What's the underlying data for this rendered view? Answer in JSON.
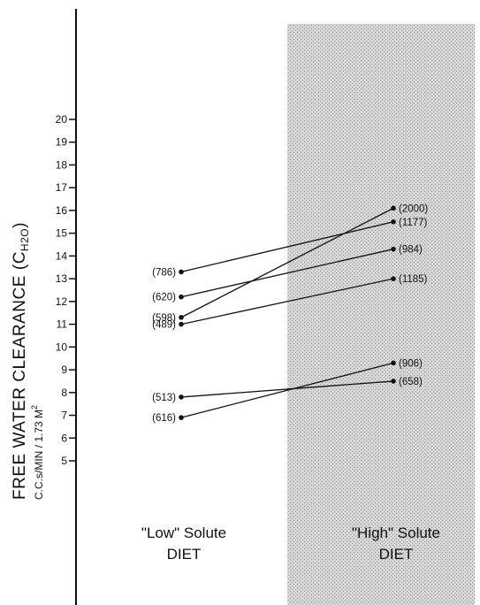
{
  "chart_data": {
    "type": "line",
    "categories": [
      "\"Low\" Solute DIET",
      "\"High\" Solute DIET"
    ],
    "category_labels": [
      {
        "line1": "\"Low\" Solute",
        "line2": "DIET"
      },
      {
        "line1": "\"High\" Solute",
        "line2": "DIET"
      }
    ],
    "ylabel": {
      "main": "FREE WATER CLEARANCE",
      "symbol": "(C",
      "subscript": "H2O",
      "symbol_close": ")",
      "units": "C.C.s/MIN / 1.73 M",
      "units_sup": "2"
    },
    "ylim": [
      3.5,
      20.5
    ],
    "yticks": [
      5,
      6,
      7,
      8,
      9,
      10,
      11,
      12,
      13,
      14,
      15,
      16,
      17,
      18,
      19,
      20
    ],
    "series": [
      {
        "low": {
          "value": 13.3,
          "label": "(786)"
        },
        "high": {
          "value": 15.5,
          "label": "(1177)"
        }
      },
      {
        "low": {
          "value": 12.2,
          "label": "(620)"
        },
        "high": {
          "value": 14.3,
          "label": "(984)"
        }
      },
      {
        "low": {
          "value": 11.3,
          "label": "(598)"
        },
        "high": {
          "value": 16.1,
          "label": "(2000)"
        }
      },
      {
        "low": {
          "value": 11.0,
          "label": "(489)"
        },
        "high": {
          "value": 13.0,
          "label": "(1185)"
        }
      },
      {
        "low": {
          "value": 7.8,
          "label": "(513)"
        },
        "high": {
          "value": 8.5,
          "label": "(658)"
        }
      },
      {
        "low": {
          "value": 6.9,
          "label": "(616)"
        },
        "high": {
          "value": 9.3,
          "label": "(906)"
        }
      }
    ],
    "shading": {
      "region": "high-solute",
      "color": "#cfcfcf"
    },
    "grid": false,
    "legend": "none"
  }
}
